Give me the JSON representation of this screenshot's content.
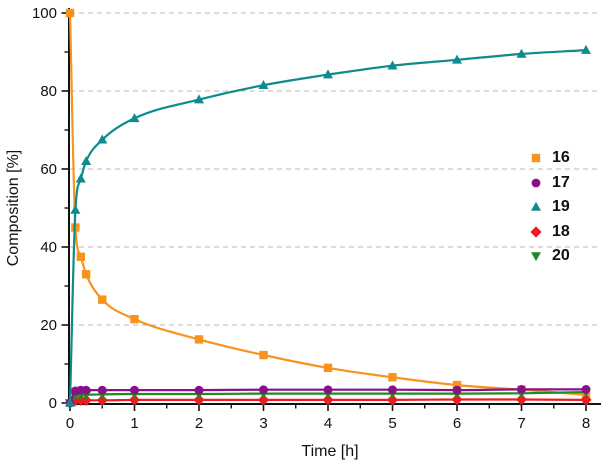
{
  "chart_data": {
    "type": "line",
    "title": "",
    "xlabel": "Time [h]",
    "ylabel": "Composition [%]",
    "xlim": [
      0,
      8.25
    ],
    "ylim": [
      0,
      103
    ],
    "xticks": [
      0,
      1,
      2,
      3,
      4,
      5,
      6,
      7,
      8
    ],
    "yticks": [
      0,
      20,
      40,
      60,
      80,
      100
    ],
    "x_minor_tick_step": 0.5,
    "y_minor_tick_step": 10,
    "grid": "horizontal dashed at major y ticks",
    "grid_color": "#b8b8b8",
    "axis_color": "#111111",
    "background": "#ffffff",
    "legend_position": "right-middle, no frame",
    "x": [
      0,
      0.083,
      0.167,
      0.25,
      0.5,
      1,
      2,
      3,
      4,
      5,
      6,
      7,
      8
    ],
    "series": [
      {
        "name": "16",
        "marker": "square",
        "color": "#F7941E",
        "values": [
          100,
          45,
          37.5,
          33,
          26.5,
          21.5,
          16.3,
          12.3,
          9,
          6.6,
          4.6,
          3.4,
          2.1
        ]
      },
      {
        "name": "17",
        "marker": "circle",
        "color": "#8B0F8B",
        "values": [
          0,
          3.1,
          3.3,
          3.3,
          3.3,
          3.3,
          3.3,
          3.4,
          3.4,
          3.4,
          3.3,
          3.5,
          3.5
        ]
      },
      {
        "name": "19",
        "marker": "triangle-up",
        "color": "#0E8B8B",
        "values": [
          0,
          49.5,
          57.5,
          62,
          67.5,
          73,
          77.8,
          81.5,
          84.2,
          86.5,
          88,
          89.5,
          90.5
        ]
      },
      {
        "name": "18",
        "marker": "diamond",
        "color": "#ED1B22",
        "values": [
          0,
          0.6,
          0.7,
          0.7,
          0.7,
          0.8,
          0.8,
          0.8,
          0.8,
          0.8,
          0.9,
          0.9,
          0.8
        ]
      },
      {
        "name": "20",
        "marker": "triangle-down",
        "color": "#1E8C1E",
        "values": [
          0,
          1.8,
          2,
          2.1,
          2.2,
          2.3,
          2.3,
          2.4,
          2.4,
          2.4,
          2.4,
          2.5,
          2.8
        ]
      }
    ]
  }
}
